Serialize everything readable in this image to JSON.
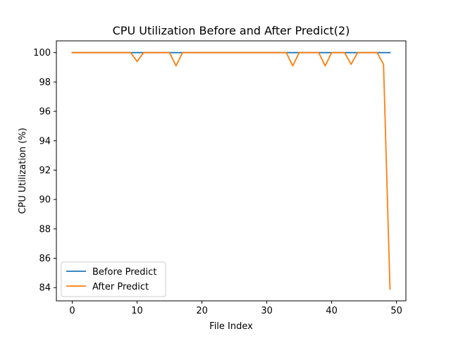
{
  "chart_data": {
    "type": "line",
    "title": "CPU Utilization Before and After Predict(2)",
    "xlabel": "File Index",
    "ylabel": "CPU Utilization (%)",
    "xlim": [
      -2.45,
      51.45
    ],
    "ylim": [
      83.1,
      100.8
    ],
    "xticks": [
      0,
      10,
      20,
      30,
      40,
      50
    ],
    "yticks": [
      84,
      86,
      88,
      90,
      92,
      94,
      96,
      98,
      100
    ],
    "grid": false,
    "legend_position": "lower-left",
    "x": [
      0,
      1,
      2,
      3,
      4,
      5,
      6,
      7,
      8,
      9,
      10,
      11,
      12,
      13,
      14,
      15,
      16,
      17,
      18,
      19,
      20,
      21,
      22,
      23,
      24,
      25,
      26,
      27,
      28,
      29,
      30,
      31,
      32,
      33,
      34,
      35,
      36,
      37,
      38,
      39,
      40,
      41,
      42,
      43,
      44,
      45,
      46,
      47,
      48,
      49
    ],
    "series": [
      {
        "name": "Before Predict",
        "color": "#1f77b4",
        "values": [
          100,
          100,
          100,
          100,
          100,
          100,
          100,
          100,
          100,
          100,
          100,
          100,
          100,
          100,
          100,
          100,
          100,
          100,
          100,
          100,
          100,
          100,
          100,
          100,
          100,
          100,
          100,
          100,
          100,
          100,
          100,
          100,
          100,
          100,
          100,
          100,
          100,
          100,
          100,
          100,
          100,
          100,
          100,
          100,
          100,
          100,
          100,
          100,
          100,
          100
        ]
      },
      {
        "name": "After Predict",
        "color": "#ff7f0e",
        "values": [
          100,
          100,
          100,
          100,
          100,
          100,
          100,
          100,
          100,
          100,
          99.4,
          100,
          100,
          100,
          100,
          100,
          99.1,
          100,
          100,
          100,
          100,
          100,
          100,
          100,
          100,
          100,
          100,
          100,
          100,
          100,
          100,
          100,
          100,
          100,
          99.1,
          100,
          100,
          100,
          100,
          99.1,
          100,
          100,
          100,
          99.2,
          100,
          100,
          100,
          100,
          99.2,
          83.9
        ]
      }
    ]
  }
}
